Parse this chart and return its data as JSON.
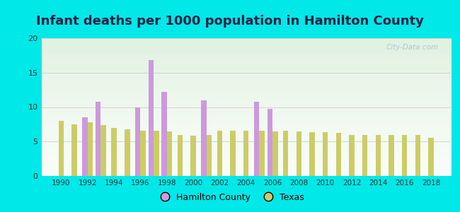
{
  "title": "Infant deaths per 1000 population in Hamilton County",
  "years": [
    1990,
    1991,
    1992,
    1993,
    1994,
    1995,
    1996,
    1997,
    1998,
    1999,
    2000,
    2001,
    2002,
    2003,
    2004,
    2005,
    2006,
    2007,
    2008,
    2009,
    2010,
    2011,
    2012,
    2013,
    2014,
    2015,
    2016,
    2017,
    2018
  ],
  "hamilton": [
    null,
    null,
    8.5,
    10.8,
    null,
    null,
    10.0,
    16.8,
    12.2,
    null,
    null,
    11.0,
    null,
    null,
    null,
    10.8,
    9.7,
    null,
    null,
    null,
    null,
    null,
    null,
    null,
    null,
    null,
    null,
    null,
    null
  ],
  "texas": [
    8.0,
    7.5,
    7.8,
    7.4,
    7.0,
    6.8,
    6.6,
    6.6,
    6.5,
    6.0,
    5.8,
    6.0,
    6.6,
    6.6,
    6.6,
    6.6,
    6.5,
    6.6,
    6.5,
    6.4,
    6.4,
    6.3,
    5.9,
    6.0,
    6.0,
    6.0,
    6.0,
    5.9,
    5.5
  ],
  "hamilton_color": "#cc99dd",
  "texas_color": "#cccc66",
  "background_outer": "#00e8e8",
  "ylim": [
    0,
    20
  ],
  "yticks": [
    0,
    5,
    10,
    15,
    20
  ],
  "bar_width": 0.4,
  "title_fontsize": 13,
  "title_color": "#222244"
}
